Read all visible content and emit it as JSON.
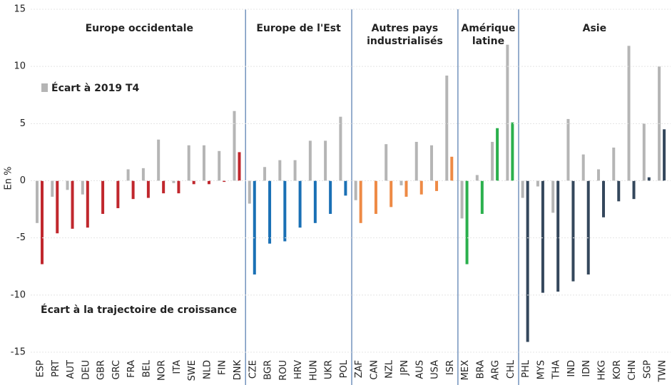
{
  "chart_data": {
    "type": "bar",
    "y_label": "En %",
    "ylim": [
      -15,
      15
    ],
    "yticks": [
      -15,
      -10,
      -5,
      0,
      5,
      10,
      15
    ],
    "grid": true,
    "regions": [
      {
        "name": [
          "Europe occidentale"
        ],
        "color": "#c0272d",
        "categories": [
          "ESP",
          "PRT",
          "AUT",
          "DEU",
          "GBR",
          "GRC",
          "FRA",
          "BEL",
          "NOR",
          "ITA",
          "SWE",
          "NLD",
          "FIN",
          "DNK"
        ]
      },
      {
        "name": [
          "Europe de l'Est"
        ],
        "color": "#1a70b5",
        "categories": [
          "CZE",
          "BGR",
          "ROU",
          "HRV",
          "HUN",
          "UKR",
          "POL"
        ]
      },
      {
        "name": [
          "Autres pays",
          "industrialisés"
        ],
        "color": "#ee8a45",
        "categories": [
          "ZAF",
          "CAN",
          "NZL",
          "JPN",
          "AUS",
          "USA",
          "ISR"
        ]
      },
      {
        "name": [
          "Amérique",
          "latine"
        ],
        "color": "#2bb04d",
        "categories": [
          "MEX",
          "BRA",
          "ARG",
          "CHL"
        ]
      },
      {
        "name": [
          "Asie"
        ],
        "color": "#34475c",
        "categories": [
          "PHL",
          "MYS",
          "THA",
          "IND",
          "IDN",
          "HKG",
          "KOR",
          "CHN",
          "SGP",
          "TWN"
        ]
      }
    ],
    "series": [
      {
        "name": "Écart à 2019 T4",
        "color": "#b5b5b5",
        "values": [
          -3.7,
          -1.4,
          -0.8,
          -1.2,
          0,
          0,
          1.0,
          1.1,
          3.6,
          -0.2,
          3.1,
          3.1,
          2.6,
          6.1,
          -2.0,
          1.2,
          1.8,
          1.8,
          3.5,
          3.5,
          5.6,
          -1.7,
          0,
          3.2,
          -0.4,
          3.4,
          3.1,
          9.2,
          -3.3,
          0.5,
          3.4,
          11.9,
          -1.5,
          -0.5,
          -2.8,
          5.4,
          2.3,
          1.0,
          2.9,
          11.8,
          5.0,
          10.0
        ]
      },
      {
        "name": "Écart à la trajectoire de croissance",
        "values": [
          -7.3,
          -4.6,
          -4.2,
          -4.1,
          -2.9,
          -2.4,
          -1.6,
          -1.5,
          -1.1,
          -1.1,
          -0.3,
          -0.3,
          -0.1,
          2.5,
          -8.2,
          -5.5,
          -5.3,
          -4.1,
          -3.7,
          -2.9,
          -1.3,
          -3.7,
          -2.9,
          -2.3,
          -1.4,
          -1.2,
          -0.9,
          2.1,
          -7.3,
          -2.9,
          4.6,
          5.1,
          -14.1,
          -9.8,
          -9.7,
          -8.8,
          -8.2,
          -3.2,
          -1.8,
          -1.6,
          0.3,
          4.5
        ]
      }
    ]
  }
}
